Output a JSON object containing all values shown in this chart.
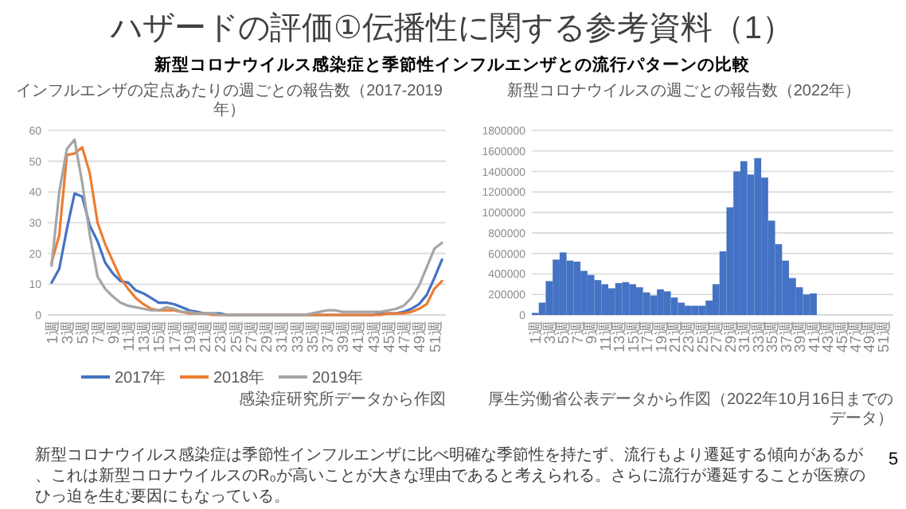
{
  "chart_data": [
    {
      "type": "other",
      "title": "ハザードの評価①伝播性に関する参考資料（1）",
      "subtitle": "新型コロナウイルス感染症と季節性インフルエンザとの流行パターンの比較",
      "annotations": [
        "新型コロナウイルス感染症は季節性インフルエンザに比べ明確な季節性を持たず、流行もより遷延する傾向があるが、これは新型コロナウイルスのR₀が高いことが大きな理由であると考えられる。さらに流行が遷延することが医療のひっ迫を生む要因にもなっている。",
        "5"
      ]
    },
    {
      "type": "line",
      "title": "インフルエンザの定点あたりの週ごとの報告数（2017-2019年）",
      "categories": [
        "1週",
        null,
        "3週",
        null,
        "5週",
        null,
        "7週",
        null,
        "9週",
        null,
        "11週",
        null,
        "13週",
        null,
        "15週",
        null,
        "17週",
        null,
        "19週",
        null,
        "21週",
        null,
        "23週",
        null,
        "25週",
        null,
        "27週",
        null,
        "29週",
        null,
        "31週",
        null,
        "33週",
        null,
        "35週",
        null,
        "37週",
        null,
        "39週",
        null,
        "41週",
        null,
        "43週",
        null,
        "45週",
        null,
        "47週",
        null,
        "49週",
        null,
        "51週",
        null
      ],
      "series": [
        {
          "name": "2017年",
          "color": "#4472c4",
          "values": [
            10.5,
            15,
            28,
            39.5,
            38.5,
            29,
            24,
            17,
            13.5,
            11,
            10.5,
            8,
            7,
            5.5,
            4,
            4,
            3.5,
            2.5,
            1.5,
            1,
            0.5,
            0.5,
            0.5,
            0,
            0,
            0,
            0,
            0,
            0,
            0,
            0,
            0,
            0,
            0,
            0,
            0,
            0,
            0,
            0,
            0,
            0,
            0,
            0,
            0.5,
            0.5,
            0.5,
            1,
            2,
            3.5,
            6.5,
            12,
            18
          ]
        },
        {
          "name": "2018年",
          "color": "#ed7d31",
          "values": [
            17,
            26,
            52,
            52.5,
            54.5,
            46,
            30,
            23,
            17.5,
            12,
            8.5,
            5.5,
            3.5,
            2,
            1.5,
            1.5,
            1.5,
            1,
            0.5,
            0.5,
            0.5,
            0,
            0,
            0,
            0,
            0,
            0,
            0,
            0,
            0,
            0,
            0,
            0,
            0,
            0,
            0,
            0,
            0,
            0,
            0,
            0,
            0,
            0,
            0,
            0.5,
            0.5,
            0.5,
            1,
            2,
            3.5,
            8.5,
            11
          ]
        },
        {
          "name": "2019年",
          "color": "#a5a5a5",
          "values": [
            16,
            40,
            54,
            57,
            43,
            26,
            12.5,
            8.5,
            6,
            4,
            3,
            2.5,
            2,
            1.5,
            1.5,
            2.5,
            2,
            1,
            1,
            0.5,
            0.5,
            0.5,
            0,
            0,
            0,
            0,
            0,
            0,
            0,
            0,
            0,
            0,
            0,
            0,
            0.5,
            1,
            1.5,
            1.5,
            1,
            1,
            1,
            1,
            1,
            1,
            1.5,
            2,
            3,
            5.5,
            9.5,
            15.5,
            21.5,
            23.5
          ]
        }
      ],
      "ylim": [
        0,
        60
      ],
      "yticks": [
        0,
        10,
        20,
        30,
        40,
        50,
        60
      ],
      "grid": "y",
      "legend": "bottom",
      "annotations": [
        "感染症研究所データから作図"
      ]
    },
    {
      "type": "bar",
      "title": "新型コロナウイルスの週ごとの報告数（2022年）",
      "categories": [
        "1週",
        null,
        "3週",
        null,
        "5週",
        null,
        "7週",
        null,
        "9週",
        null,
        "11週",
        null,
        "13週",
        null,
        "15週",
        null,
        "17週",
        null,
        "19週",
        null,
        "21週",
        null,
        "23週",
        null,
        "25週",
        null,
        "27週",
        null,
        "29週",
        null,
        "31週",
        null,
        "33週",
        null,
        "35週",
        null,
        "37週",
        null,
        "39週",
        null,
        "41週",
        null,
        "43週",
        null,
        "45週",
        null,
        "47週",
        null,
        "49週",
        null,
        "51週",
        null
      ],
      "series": [
        {
          "color": "#4472c4",
          "values": [
            20000,
            120000,
            330000,
            540000,
            610000,
            530000,
            520000,
            430000,
            390000,
            340000,
            300000,
            260000,
            310000,
            320000,
            300000,
            270000,
            220000,
            190000,
            250000,
            230000,
            170000,
            120000,
            90000,
            90000,
            90000,
            140000,
            300000,
            620000,
            1050000,
            1400000,
            1500000,
            1370000,
            1530000,
            1340000,
            920000,
            690000,
            530000,
            360000,
            270000,
            200000,
            210000,
            null,
            null,
            null,
            null,
            null,
            null,
            null,
            null,
            null,
            null,
            null
          ]
        }
      ],
      "ylim": [
        0,
        1800000
      ],
      "yticks": [
        0,
        200000,
        400000,
        600000,
        800000,
        1000000,
        1200000,
        1400000,
        1600000,
        1800000
      ],
      "grid": "y",
      "annotations": [
        "厚生労働省公表データから作図（2022年10月16日までのデータ）"
      ]
    }
  ]
}
